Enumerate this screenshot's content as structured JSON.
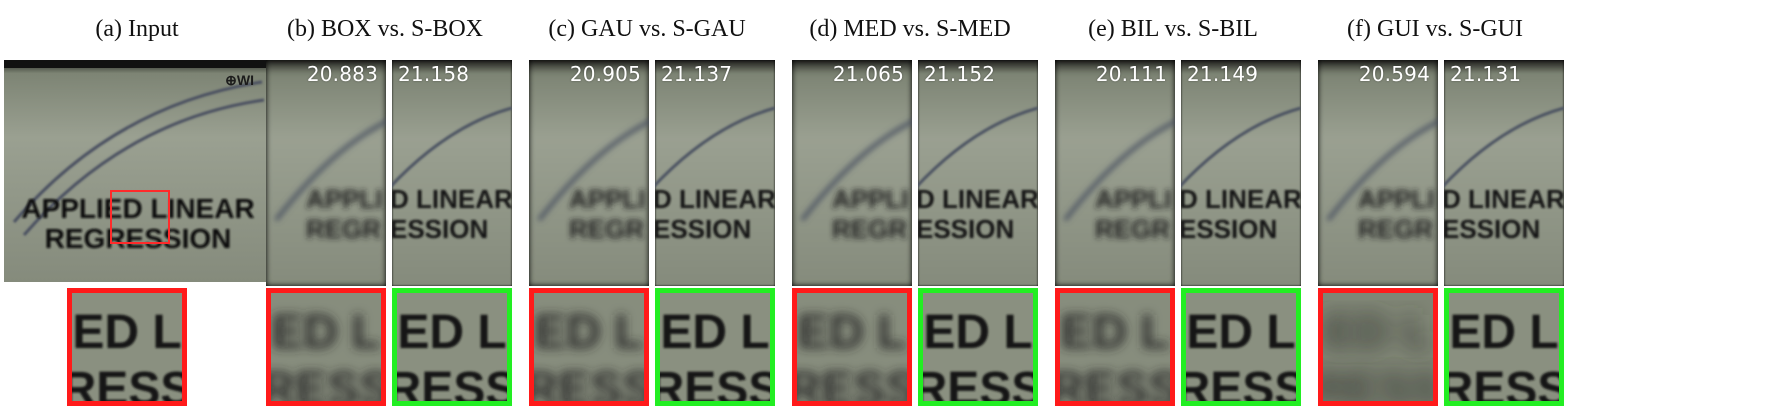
{
  "input": {
    "caption": "(a)  Input"
  },
  "comparisons": [
    {
      "caption": "(b)  BOX vs. S-BOX",
      "left_score": "20.883",
      "right_score": "21.158"
    },
    {
      "caption": "(c)  GAU vs. S-GAU",
      "left_score": "20.905",
      "right_score": "21.137"
    },
    {
      "caption": "(d)  MED vs. S-MED",
      "left_score": "21.065",
      "right_score": "21.152"
    },
    {
      "caption": "(e)  BIL vs. S-BIL",
      "left_score": "20.111",
      "right_score": "21.149"
    },
    {
      "caption": "(f)  GUI vs. S-GUI",
      "left_score": "20.594",
      "right_score": "21.131"
    }
  ],
  "scene_text": {
    "line1": "APPLIED LINEAR",
    "line2": "REGRESSION",
    "zoom_line1": "ED L",
    "zoom_line2": "RESS"
  },
  "colors": {
    "zoom_left_border": "#ff1a1a",
    "zoom_right_border": "#22ee22",
    "roi_box": "#ff2a2a"
  }
}
